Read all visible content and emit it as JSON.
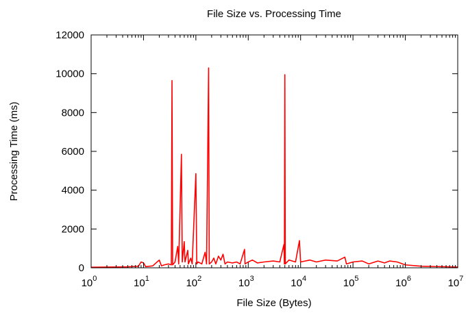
{
  "chart_data": {
    "type": "line",
    "title": "File Size vs. Processing Time",
    "xlabel": "File Size (Bytes)",
    "ylabel": "Processing Time (ms)",
    "xscale": "log",
    "xlim": [
      1,
      10000000
    ],
    "ylim": [
      0,
      12000
    ],
    "xticks": [
      {
        "base": "10",
        "exp": "0"
      },
      {
        "base": "10",
        "exp": "1"
      },
      {
        "base": "10",
        "exp": "2"
      },
      {
        "base": "10",
        "exp": "3"
      },
      {
        "base": "10",
        "exp": "4"
      },
      {
        "base": "10",
        "exp": "5"
      },
      {
        "base": "10",
        "exp": "6"
      },
      {
        "base": "10",
        "exp": "7"
      }
    ],
    "yticks": [
      "0",
      "2000",
      "4000",
      "6000",
      "8000",
      "10000",
      "12000"
    ],
    "grid": false,
    "series": [
      {
        "color": "#ff0000",
        "points": [
          [
            1,
            30
          ],
          [
            2,
            40
          ],
          [
            5,
            50
          ],
          [
            8,
            80
          ],
          [
            9,
            300
          ],
          [
            10,
            250
          ],
          [
            11,
            60
          ],
          [
            15,
            100
          ],
          [
            20,
            400
          ],
          [
            22,
            100
          ],
          [
            25,
            150
          ],
          [
            30,
            200
          ],
          [
            34,
            150
          ],
          [
            35,
            9650
          ],
          [
            36,
            150
          ],
          [
            40,
            300
          ],
          [
            45,
            1100
          ],
          [
            47,
            200
          ],
          [
            53,
            5850
          ],
          [
            55,
            300
          ],
          [
            60,
            1350
          ],
          [
            62,
            300
          ],
          [
            70,
            900
          ],
          [
            72,
            200
          ],
          [
            80,
            500
          ],
          [
            85,
            200
          ],
          [
            100,
            4850
          ],
          [
            104,
            200
          ],
          [
            110,
            300
          ],
          [
            130,
            200
          ],
          [
            150,
            800
          ],
          [
            160,
            200
          ],
          [
            175,
            10300
          ],
          [
            180,
            200
          ],
          [
            200,
            300
          ],
          [
            220,
            500
          ],
          [
            240,
            200
          ],
          [
            270,
            600
          ],
          [
            300,
            400
          ],
          [
            330,
            700
          ],
          [
            360,
            200
          ],
          [
            400,
            300
          ],
          [
            500,
            250
          ],
          [
            600,
            300
          ],
          [
            700,
            200
          ],
          [
            850,
            950
          ],
          [
            870,
            200
          ],
          [
            1000,
            300
          ],
          [
            1200,
            400
          ],
          [
            1500,
            250
          ],
          [
            2000,
            300
          ],
          [
            3000,
            350
          ],
          [
            4000,
            300
          ],
          [
            4800,
            1200
          ],
          [
            4900,
            200
          ],
          [
            5000,
            9950
          ],
          [
            5100,
            200
          ],
          [
            6000,
            400
          ],
          [
            8000,
            300
          ],
          [
            9500,
            1400
          ],
          [
            10000,
            300
          ],
          [
            15000,
            400
          ],
          [
            20000,
            300
          ],
          [
            30000,
            400
          ],
          [
            50000,
            350
          ],
          [
            70000,
            550
          ],
          [
            75000,
            200
          ],
          [
            100000,
            300
          ],
          [
            150000,
            350
          ],
          [
            200000,
            200
          ],
          [
            300000,
            350
          ],
          [
            400000,
            250
          ],
          [
            500000,
            350
          ],
          [
            700000,
            300
          ],
          [
            1000000,
            150
          ],
          [
            2000000,
            80
          ],
          [
            5000000,
            60
          ],
          [
            10000000,
            40
          ]
        ]
      }
    ]
  }
}
